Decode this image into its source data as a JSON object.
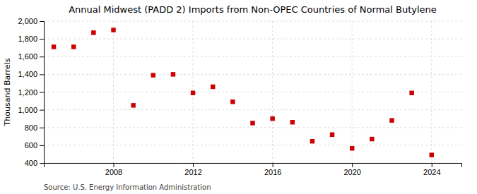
{
  "chart_data": {
    "type": "scatter",
    "title": "Annual Midwest (PADD 2) Imports from Non-OPEC Countries of Normal Butylene",
    "ylabel": "Thousand Barrels",
    "annotations": [
      "Source: U.S. Energy Information Administration"
    ],
    "x": [
      2005,
      2006,
      2007,
      2008,
      2009,
      2010,
      2011,
      2012,
      2013,
      2014,
      2015,
      2016,
      2017,
      2018,
      2019,
      2020,
      2021,
      2022,
      2023,
      2024
    ],
    "values": [
      1710,
      1710,
      1870,
      1900,
      1050,
      1390,
      1400,
      1190,
      1260,
      1090,
      850,
      900,
      860,
      645,
      720,
      565,
      670,
      880,
      1190,
      490
    ],
    "color": "#cc0000",
    "marker": "square",
    "xlim": [
      2004.5,
      2025.5
    ],
    "xticks": [
      2008,
      2012,
      2016,
      2020,
      2024
    ],
    "ylim": [
      400,
      2000
    ],
    "yticks": [
      400,
      600,
      800,
      {
        "value": 1000,
        "label": "1,000"
      },
      {
        "value": 1200,
        "label": "1,200"
      },
      {
        "value": 1400,
        "label": "1,400"
      },
      {
        "value": 1600,
        "label": "1,600"
      },
      {
        "value": 1800,
        "label": "1,800"
      },
      {
        "value": 2000,
        "label": "2,000"
      }
    ],
    "grid": true
  }
}
